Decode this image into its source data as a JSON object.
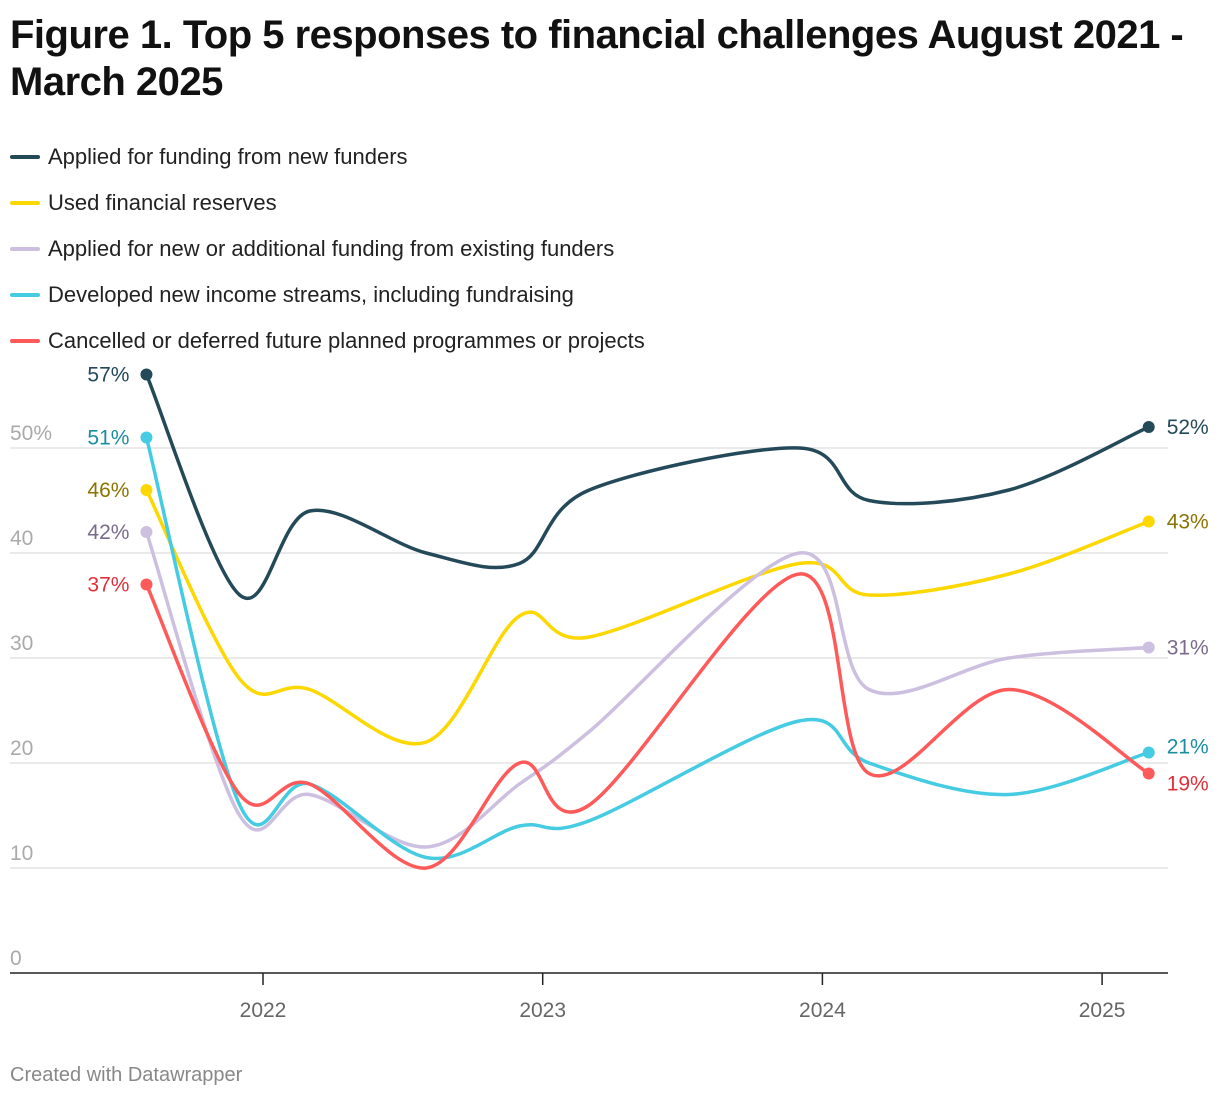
{
  "chart_data": {
    "type": "line",
    "title": "Figure 1. Top 5 responses to financial challenges August 2021 - March 2025",
    "xlabel": "",
    "ylabel": "",
    "ylim": [
      0,
      57
    ],
    "yticks": [
      0,
      10,
      20,
      30,
      40,
      50
    ],
    "ytick_labels": [
      "0",
      "10",
      "20",
      "30",
      "40",
      "50%"
    ],
    "xticks": [
      "2022",
      "2023",
      "2024",
      "2025"
    ],
    "grid": true,
    "legend": "top",
    "x": [
      "2021-08",
      "2021-12",
      "2022-03",
      "2022-08",
      "2022-12",
      "2023-03",
      "2023-12",
      "2024-03",
      "2024-09",
      "2025-03"
    ],
    "series": [
      {
        "name": "Applied for funding from new funders",
        "color": "#244a59",
        "label_color": "#244a59",
        "values": [
          57,
          36,
          44,
          40,
          39,
          46,
          50,
          45,
          46,
          52
        ],
        "start_label": "57%",
        "end_label": "52%"
      },
      {
        "name": "Used financial reserves",
        "color": "#fdd700",
        "label_color": "#8a7400",
        "values": [
          46,
          28,
          27,
          22,
          34,
          32,
          39,
          36,
          38,
          43
        ],
        "start_label": "46%",
        "end_label": "43%"
      },
      {
        "name": "Applied for new or additional funding from existing funders",
        "color": "#cdbfe0",
        "label_color": "#7a6b8d",
        "values": [
          42,
          15,
          17,
          12,
          18,
          23,
          40,
          27,
          30,
          31
        ],
        "start_label": "42%",
        "end_label": "31%"
      },
      {
        "name": "Developed new income streams, including fundraising",
        "color": "#45cbe2",
        "label_color": "#1a8ea0",
        "values": [
          51,
          16,
          18,
          11,
          14,
          14.5,
          24,
          20,
          17,
          21
        ],
        "start_label": "51%",
        "end_label": "21%"
      },
      {
        "name": "Cancelled or deferred future planned programmes or projects",
        "color": "#ff5a5a",
        "label_color": "#e0303a",
        "values": [
          37,
          17,
          18,
          10,
          20,
          16,
          38,
          19,
          27,
          19
        ],
        "start_label": "37%",
        "end_label": "19%"
      }
    ]
  },
  "footer": "Created with Datawrapper"
}
